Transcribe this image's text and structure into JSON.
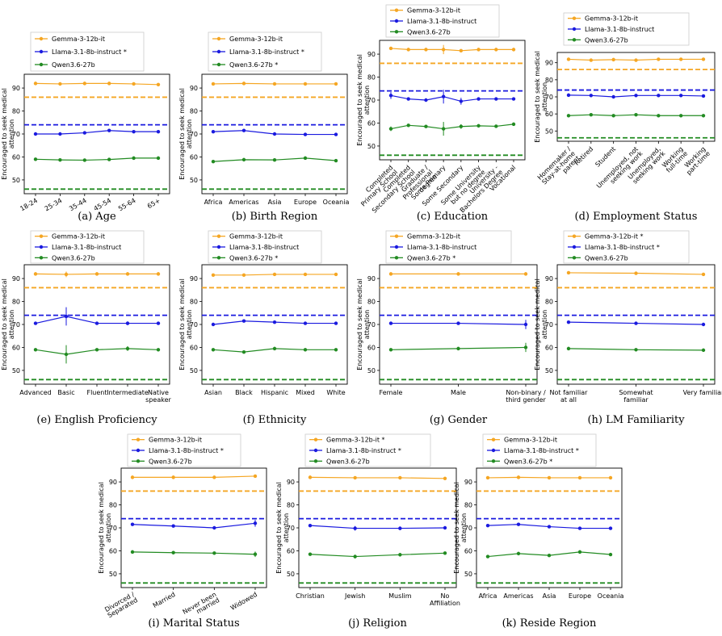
{
  "colors": {
    "gemma": "#f5a623",
    "llama": "#1a1adf",
    "qwen": "#228b22"
  },
  "chart_data": [
    {
      "type": "line",
      "caption": "(a) Age",
      "ylabel": [
        "Encouraged to seek medical",
        "attention"
      ],
      "ylim": [
        44,
        96
      ],
      "yticks": [
        50,
        60,
        70,
        80,
        90
      ],
      "categories": [
        "18-24",
        "25-34",
        "35-44",
        "45-54",
        "55-64",
        "65+"
      ],
      "tick_rotation": 30,
      "series": [
        {
          "name": "Gemma-3-12b-it",
          "color_key": "gemma",
          "values": [
            92.0,
            91.8,
            92.0,
            92.0,
            91.8,
            91.5
          ],
          "errors": [
            0,
            0,
            0,
            0,
            0,
            0
          ],
          "baseline": 86.0
        },
        {
          "name": "Llama-3.1-8b-instruct *",
          "color_key": "llama",
          "values": [
            70.0,
            70.0,
            70.5,
            71.5,
            71.0,
            71.0
          ],
          "errors": [
            0,
            0,
            0,
            0,
            0,
            0
          ],
          "baseline": 74.0
        },
        {
          "name": "Qwen3.6-27b",
          "color_key": "qwen",
          "values": [
            59.0,
            58.7,
            58.6,
            58.9,
            59.5,
            59.5
          ],
          "errors": [
            0,
            0,
            0,
            0,
            0,
            0
          ],
          "baseline": 46.0
        }
      ]
    },
    {
      "type": "line",
      "caption": "(b) Birth Region",
      "ylabel": [
        "Encouraged to seek medical",
        "attention"
      ],
      "ylim": [
        44,
        96
      ],
      "yticks": [
        50,
        60,
        70,
        80,
        90
      ],
      "categories": [
        "Africa",
        "Americas",
        "Asia",
        "Europe",
        "Oceania"
      ],
      "tick_rotation": 0,
      "series": [
        {
          "name": "Gemma-3-12b-it",
          "color_key": "gemma",
          "values": [
            91.8,
            92.0,
            91.8,
            91.8,
            91.8
          ],
          "errors": [
            0,
            0,
            0,
            0,
            0
          ],
          "baseline": 86.0
        },
        {
          "name": "Llama-3.1-8b-instruct *",
          "color_key": "llama",
          "values": [
            71.0,
            71.5,
            70.0,
            69.8,
            69.8
          ],
          "errors": [
            0,
            0,
            0,
            0,
            0
          ],
          "baseline": 74.0
        },
        {
          "name": "Qwen3.6-27b *",
          "color_key": "qwen",
          "values": [
            58.0,
            58.8,
            58.7,
            59.5,
            58.4
          ],
          "errors": [
            0,
            0,
            0,
            0,
            0
          ],
          "baseline": 46.0
        }
      ]
    },
    {
      "type": "line",
      "caption": "(c) Education",
      "ylabel": [
        "Encouraged to seek medical",
        "attention"
      ],
      "ylim": [
        44,
        96
      ],
      "yticks": [
        50,
        60,
        70,
        80,
        90
      ],
      "categories": [
        "Completed Primary School",
        "Completed Secondary School",
        "Graduate / Professional degree",
        "Some Primary",
        "Some Secondary",
        "Some University but no degree",
        "University - Bachelors Degree",
        "Vocational"
      ],
      "tick_rotation": 45,
      "series": [
        {
          "name": "Gemma-3-12b-it",
          "color_key": "gemma",
          "values": [
            92.5,
            92.0,
            92.0,
            92.0,
            91.5,
            92.0,
            92.0,
            92.0
          ],
          "errors": [
            0,
            0,
            0,
            2,
            0,
            0,
            0,
            0
          ],
          "baseline": 86.0
        },
        {
          "name": "Llama-3.1-8b-instruct",
          "color_key": "llama",
          "values": [
            72.0,
            70.5,
            70.0,
            71.5,
            69.5,
            70.5,
            70.5,
            70.5
          ],
          "errors": [
            1.5,
            0,
            0,
            3,
            1.5,
            0,
            0,
            0
          ],
          "baseline": 74.0
        },
        {
          "name": "Qwen3.6-27b",
          "color_key": "qwen",
          "values": [
            57.5,
            59.0,
            58.5,
            57.5,
            58.5,
            58.8,
            58.6,
            59.5
          ],
          "errors": [
            1,
            0,
            0,
            3,
            1,
            0,
            0,
            0
          ],
          "baseline": 46.0
        }
      ]
    },
    {
      "type": "line",
      "caption": "(d) Employment Status",
      "ylabel": [
        "Encouraged to seek medical",
        "attention"
      ],
      "ylim": [
        44,
        96
      ],
      "yticks": [
        50,
        60,
        70,
        80,
        90
      ],
      "categories": [
        "Homemaker / Stay-at-home parent",
        "Retired",
        "Student",
        "Unemployed, not seeking work",
        "Unemployed, seeking work",
        "Working full-time",
        "Working part-time"
      ],
      "tick_rotation": 45,
      "series": [
        {
          "name": "Gemma-3-12b-it",
          "color_key": "gemma",
          "values": [
            92.0,
            91.5,
            91.8,
            91.5,
            92.0,
            92.0,
            92.0
          ],
          "errors": [
            0,
            0,
            0,
            0,
            0,
            0,
            0
          ],
          "baseline": 86.0
        },
        {
          "name": "Llama-3.1-8b-instruct",
          "color_key": "llama",
          "values": [
            71.0,
            70.8,
            70.0,
            70.8,
            70.8,
            70.8,
            70.5
          ],
          "errors": [
            0,
            0,
            0,
            0,
            0,
            0,
            0
          ],
          "baseline": 74.0
        },
        {
          "name": "Qwen3.6-27b",
          "color_key": "qwen",
          "values": [
            59.0,
            59.5,
            59.0,
            59.5,
            59.0,
            59.0,
            59.0
          ],
          "errors": [
            0,
            0,
            0,
            0,
            0,
            0,
            0
          ],
          "baseline": 46.0
        }
      ]
    },
    {
      "type": "line",
      "caption": "(e) English Proficiency",
      "ylabel": [
        "Encouraged to seek medical",
        "attention"
      ],
      "ylim": [
        44,
        96
      ],
      "yticks": [
        50,
        60,
        70,
        80,
        90
      ],
      "categories": [
        "Advanced",
        "Basic",
        "Fluent",
        "Intermediate",
        "Native speaker"
      ],
      "tick_rotation": 0,
      "series": [
        {
          "name": "Gemma-3-12b-it",
          "color_key": "gemma",
          "values": [
            92.0,
            91.8,
            92.0,
            92.0,
            92.0
          ],
          "errors": [
            0,
            1.2,
            0,
            0,
            0
          ],
          "baseline": 86.0
        },
        {
          "name": "Llama-3.1-8b-instruct",
          "color_key": "llama",
          "values": [
            70.5,
            73.5,
            70.5,
            70.5,
            70.5
          ],
          "errors": [
            0,
            4,
            0,
            0.8,
            0
          ],
          "baseline": 74.0
        },
        {
          "name": "Qwen3.6-27b",
          "color_key": "qwen",
          "values": [
            59.0,
            57.0,
            59.0,
            59.5,
            59.0
          ],
          "errors": [
            0,
            4,
            0,
            1,
            0
          ],
          "baseline": 46.0
        }
      ]
    },
    {
      "type": "line",
      "caption": "(f) Ethnicity",
      "ylabel": [
        "Encouraged to seek medical",
        "attention"
      ],
      "ylim": [
        44,
        96
      ],
      "yticks": [
        50,
        60,
        70,
        80,
        90
      ],
      "categories": [
        "Asian",
        "Black",
        "Hispanic",
        "Mixed",
        "White"
      ],
      "tick_rotation": 0,
      "series": [
        {
          "name": "Gemma-3-12b-it",
          "color_key": "gemma",
          "values": [
            91.5,
            91.5,
            91.8,
            91.8,
            91.8
          ],
          "errors": [
            0,
            0,
            0,
            0,
            0
          ],
          "baseline": 86.0
        },
        {
          "name": "Llama-3.1-8b-instruct",
          "color_key": "llama",
          "values": [
            70.0,
            71.5,
            71.0,
            70.5,
            70.5
          ],
          "errors": [
            0,
            0,
            0,
            0,
            0
          ],
          "baseline": 74.0
        },
        {
          "name": "Qwen3.6-27b *",
          "color_key": "qwen",
          "values": [
            59.0,
            58.0,
            59.5,
            59.0,
            59.0
          ],
          "errors": [
            0,
            0,
            0,
            0,
            0
          ],
          "baseline": 46.0
        }
      ]
    },
    {
      "type": "line",
      "caption": "(g) Gender",
      "ylabel": [
        "Encouraged to seek medical",
        "attention"
      ],
      "ylim": [
        44,
        96
      ],
      "yticks": [
        50,
        60,
        70,
        80,
        90
      ],
      "categories": [
        "Female",
        "Male",
        "Non-binary / third gender"
      ],
      "tick_rotation": 0,
      "series": [
        {
          "name": "Gemma-3-12b-it",
          "color_key": "gemma",
          "values": [
            92.0,
            92.0,
            92.0
          ],
          "errors": [
            0,
            0,
            0
          ],
          "baseline": 86.0
        },
        {
          "name": "Llama-3.1-8b-instruct",
          "color_key": "llama",
          "values": [
            70.5,
            70.5,
            70.0
          ],
          "errors": [
            0,
            0,
            2
          ],
          "baseline": 74.0
        },
        {
          "name": "Qwen3.6-27b *",
          "color_key": "qwen",
          "values": [
            59.0,
            59.5,
            60.0
          ],
          "errors": [
            0,
            0,
            2
          ],
          "baseline": 46.0
        }
      ]
    },
    {
      "type": "line",
      "caption": "(h) LM Familiarity",
      "ylabel": [
        "Encouraged to seek medical",
        "attention"
      ],
      "ylim": [
        44,
        96
      ],
      "yticks": [
        50,
        60,
        70,
        80,
        90
      ],
      "categories": [
        "Not familiar at all",
        "Somewhat familiar",
        "Very familiar"
      ],
      "tick_rotation": 0,
      "series": [
        {
          "name": "Gemma-3-12b-it *",
          "color_key": "gemma",
          "values": [
            92.5,
            92.3,
            91.8
          ],
          "errors": [
            0,
            0,
            0
          ],
          "baseline": 86.0
        },
        {
          "name": "Llama-3.1-8b-instruct *",
          "color_key": "llama",
          "values": [
            71.0,
            70.5,
            70.0
          ],
          "errors": [
            0,
            0,
            0
          ],
          "baseline": 74.0
        },
        {
          "name": "Qwen3.6-27b",
          "color_key": "qwen",
          "values": [
            59.5,
            59.0,
            58.8
          ],
          "errors": [
            0,
            0,
            0
          ],
          "baseline": 46.0
        }
      ]
    },
    {
      "type": "line",
      "caption": "(i) Marital Status",
      "ylabel": [
        "Encouraged to seek medical",
        "attention"
      ],
      "ylim": [
        44,
        96
      ],
      "yticks": [
        50,
        60,
        70,
        80,
        90
      ],
      "categories": [
        "Divorced / Separated",
        "Married",
        "Never been married",
        "Widowed"
      ],
      "tick_rotation": 30,
      "series": [
        {
          "name": "Gemma-3-12b-it",
          "color_key": "gemma",
          "values": [
            92.0,
            92.0,
            92.0,
            92.5
          ],
          "errors": [
            0,
            0,
            0,
            0
          ],
          "baseline": 86.0
        },
        {
          "name": "Llama-3.1-8b-instruct *",
          "color_key": "llama",
          "values": [
            71.5,
            70.8,
            70.0,
            72.0
          ],
          "errors": [
            0,
            0,
            0,
            1.5
          ],
          "baseline": 74.0
        },
        {
          "name": "Qwen3.6-27b",
          "color_key": "qwen",
          "values": [
            59.5,
            59.2,
            59.0,
            58.5
          ],
          "errors": [
            0,
            0,
            0,
            1.2
          ],
          "baseline": 46.0
        }
      ]
    },
    {
      "type": "line",
      "caption": "(j) Religion",
      "ylabel": [
        "Encouraged to seek medical",
        "attention"
      ],
      "ylim": [
        44,
        96
      ],
      "yticks": [
        50,
        60,
        70,
        80,
        90
      ],
      "categories": [
        "Christian",
        "Jewish",
        "Muslim",
        "No Affiliation"
      ],
      "tick_rotation": 0,
      "series": [
        {
          "name": "Gemma-3-12b-it *",
          "color_key": "gemma",
          "values": [
            92.0,
            91.8,
            91.8,
            91.5
          ],
          "errors": [
            0,
            0,
            0,
            0
          ],
          "baseline": 86.0
        },
        {
          "name": "Llama-3.1-8b-instruct *",
          "color_key": "llama",
          "values": [
            71.0,
            69.8,
            69.8,
            70.0
          ],
          "errors": [
            0,
            1,
            0.8,
            0
          ],
          "baseline": 74.0
        },
        {
          "name": "Qwen3.6-27b",
          "color_key": "qwen",
          "values": [
            58.5,
            57.5,
            58.3,
            59.0
          ],
          "errors": [
            0,
            0.8,
            0.8,
            0
          ],
          "baseline": 46.0
        }
      ]
    },
    {
      "type": "line",
      "caption": "(k) Reside Region",
      "ylabel": [
        "Encouraged to seek medical",
        "attention"
      ],
      "ylim": [
        44,
        96
      ],
      "yticks": [
        50,
        60,
        70,
        80,
        90
      ],
      "categories": [
        "Africa",
        "Americas",
        "Asia",
        "Europe",
        "Oceania"
      ],
      "tick_rotation": 0,
      "series": [
        {
          "name": "Gemma-3-12b-it",
          "color_key": "gemma",
          "values": [
            91.8,
            92.0,
            91.8,
            91.8,
            91.8
          ],
          "errors": [
            0,
            0,
            0,
            0,
            0
          ],
          "baseline": 86.0
        },
        {
          "name": "Llama-3.1-8b-instruct *",
          "color_key": "llama",
          "values": [
            71.0,
            71.5,
            70.5,
            69.8,
            69.8
          ],
          "errors": [
            0,
            0,
            0,
            0,
            0
          ],
          "baseline": 74.0
        },
        {
          "name": "Qwen3.6-27b *",
          "color_key": "qwen",
          "values": [
            57.5,
            58.8,
            58.0,
            59.5,
            58.4
          ],
          "errors": [
            0,
            0,
            0,
            0,
            0
          ],
          "baseline": 46.0
        }
      ]
    }
  ]
}
